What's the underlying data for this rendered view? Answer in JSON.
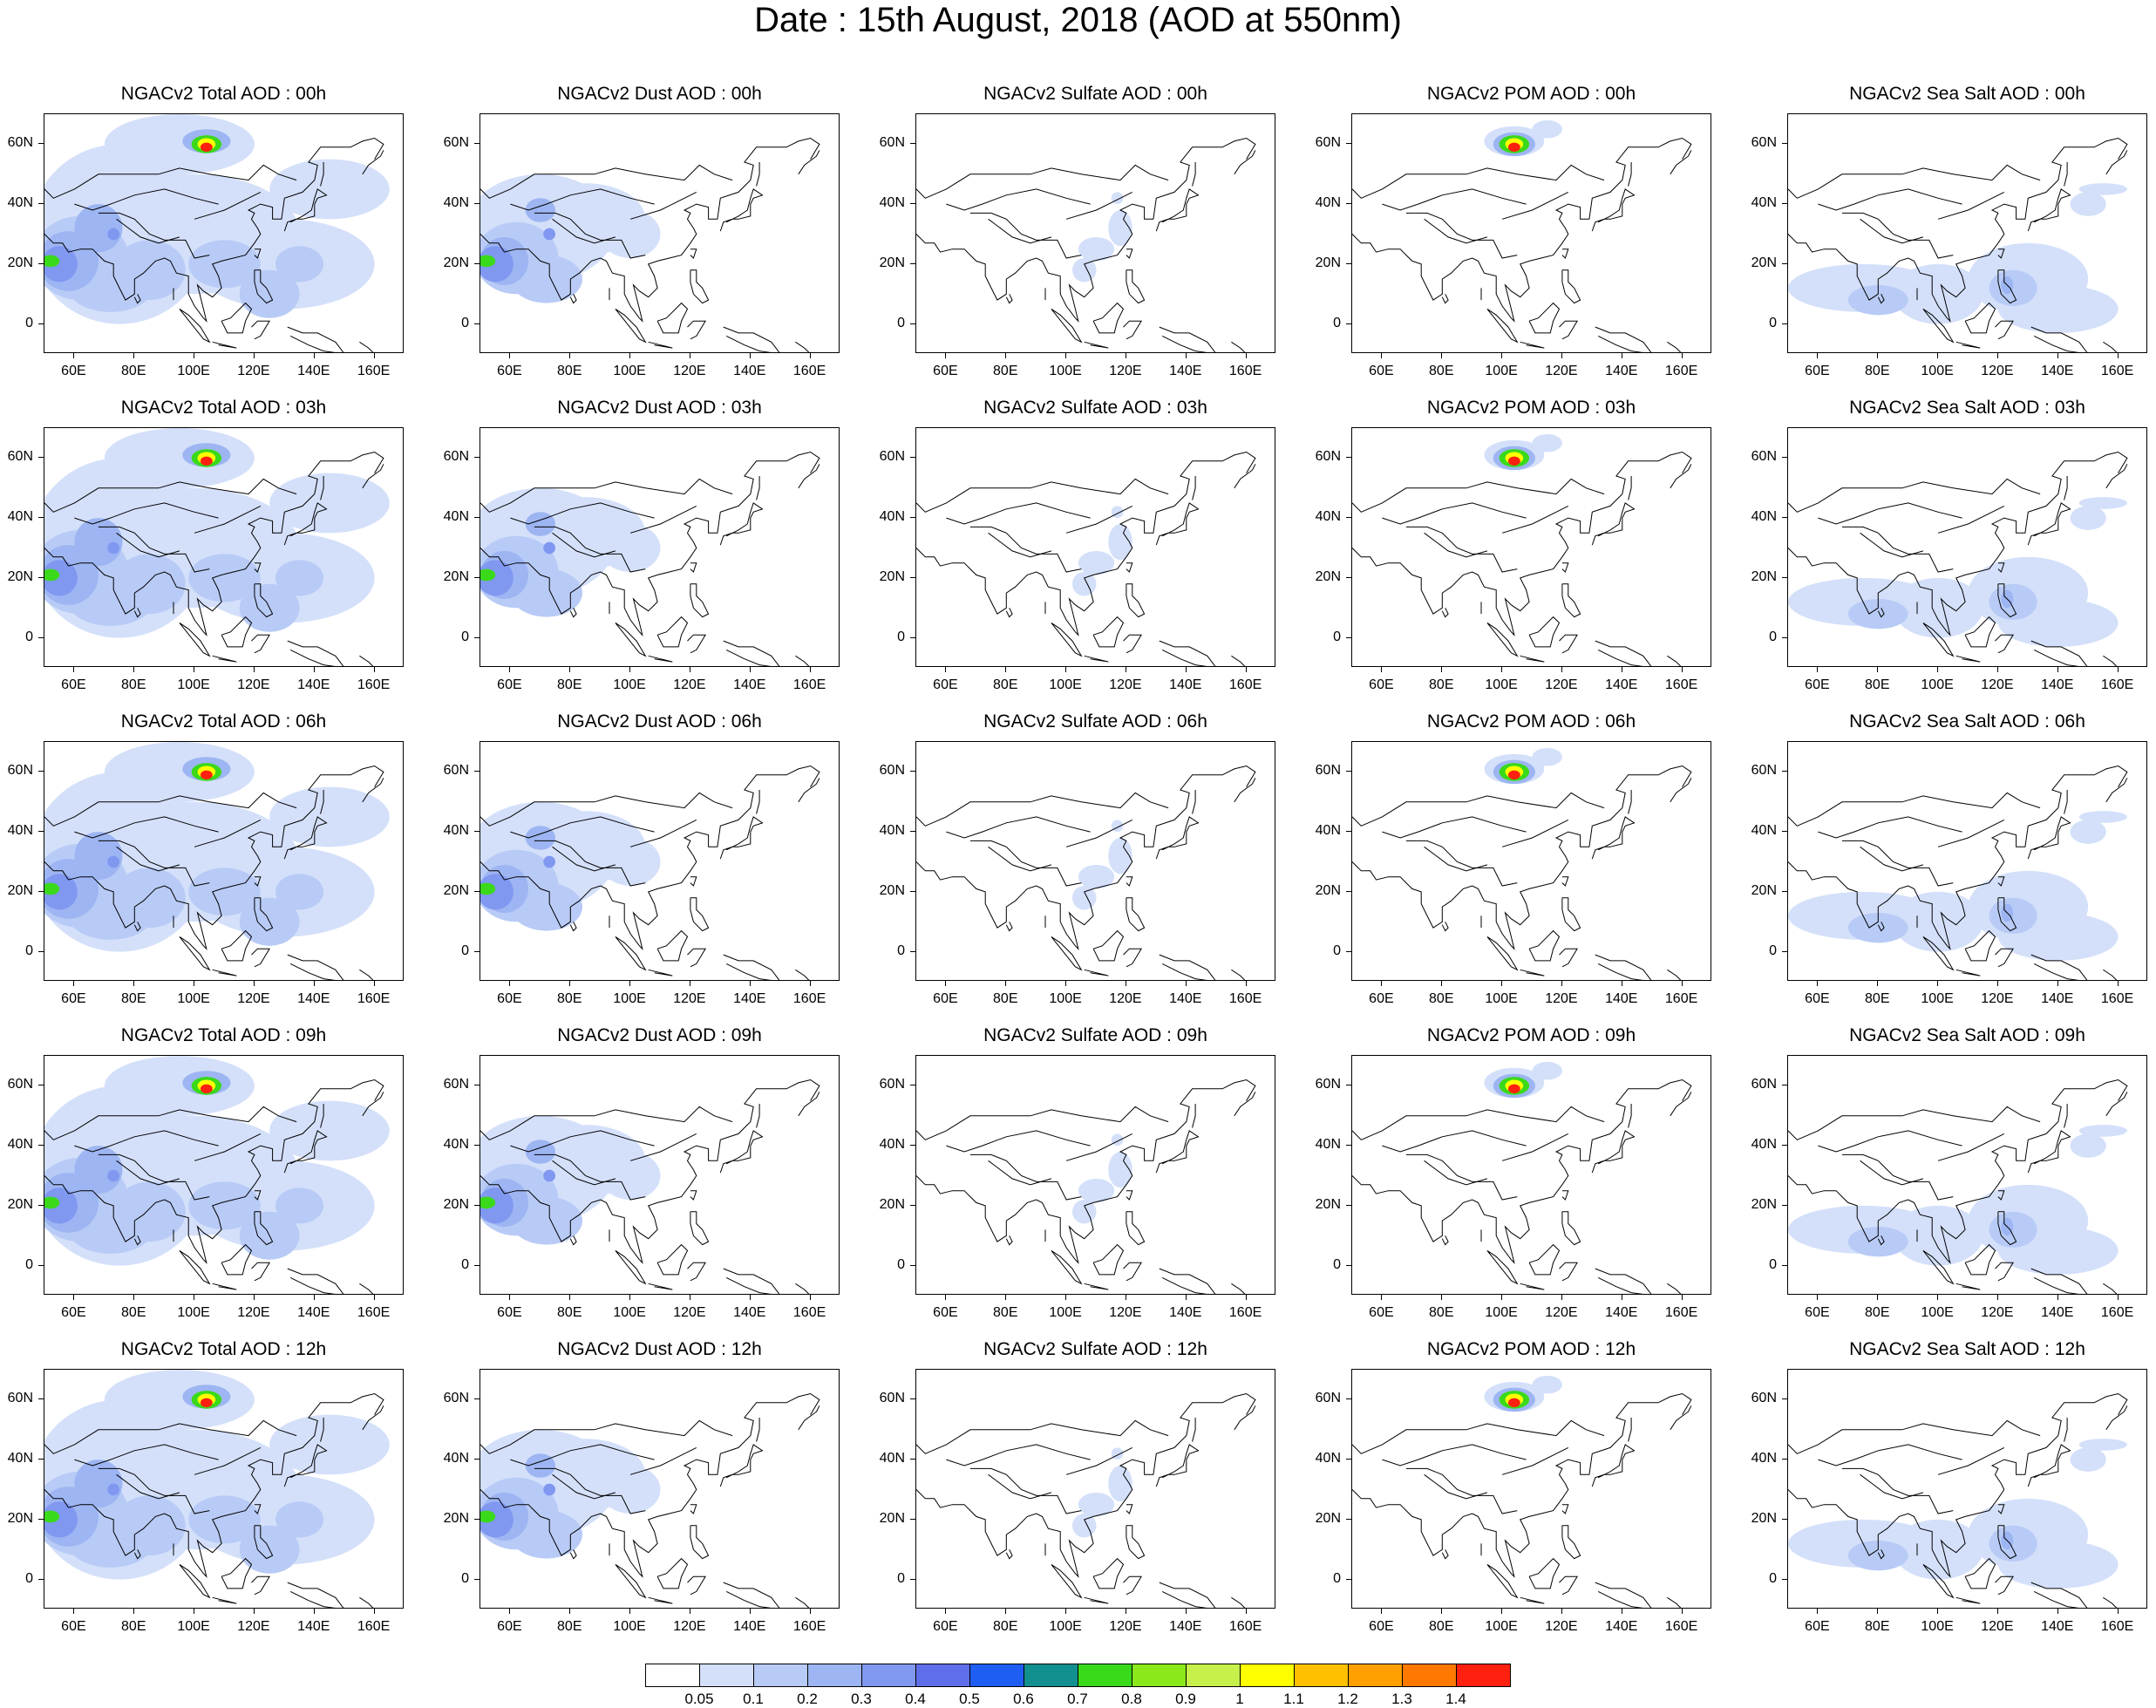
{
  "title": "Date : 15th August, 2018 (AOD at 550nm)",
  "lon_ticks": [
    "60E",
    "80E",
    "100E",
    "120E",
    "140E",
    "160E"
  ],
  "lat_ticks": [
    "60N",
    "40N",
    "20N",
    "0"
  ],
  "species": [
    "total",
    "dust",
    "sulfate",
    "pom",
    "seasalt"
  ],
  "panel_titles": [
    [
      "NGACv2 Total AOD : 00h",
      "NGACv2 Dust AOD : 00h",
      "NGACv2 Sulfate AOD : 00h",
      "NGACv2 POM AOD : 00h",
      "NGACv2 Sea Salt AOD : 00h"
    ],
    [
      "NGACv2 Total AOD : 03h",
      "NGACv2 Dust AOD : 03h",
      "NGACv2 Sulfate AOD : 03h",
      "NGACv2 POM AOD : 03h",
      "NGACv2 Sea Salt AOD : 03h"
    ],
    [
      "NGACv2 Total AOD : 06h",
      "NGACv2 Dust AOD : 06h",
      "NGACv2 Sulfate AOD : 06h",
      "NGACv2 POM AOD : 06h",
      "NGACv2 Sea Salt AOD : 06h"
    ],
    [
      "NGACv2 Total AOD : 09h",
      "NGACv2 Dust AOD : 09h",
      "NGACv2 Sulfate AOD : 09h",
      "NGACv2 POM AOD : 09h",
      "NGACv2 Sea Salt  AOD : 09h"
    ],
    [
      "NGACv2 Total AOD  : 12h",
      "NGACv2 Dust AOD : 12h",
      "NGACv2 Sulfate AOD : 12h",
      "NGACv2 POM  AOD : 12h",
      "NGACv2 Sea Salt  AOD : 12h"
    ]
  ],
  "colorbar": {
    "labels": [
      "0.05",
      "0.1",
      "0.2",
      "0.3",
      "0.4",
      "0.5",
      "0.6",
      "0.7",
      "0.8",
      "0.9",
      "1",
      "1.1",
      "1.2",
      "1.3",
      "1.4"
    ],
    "colors": [
      "#ffffff",
      "#d4e0fa",
      "#b8cbf6",
      "#9db5f2",
      "#8098f0",
      "#5f6ee9",
      "#1f5ef2",
      "#12908f",
      "#3ad91a",
      "#8be81a",
      "#c8f04a",
      "#ffff00",
      "#ffc000",
      "#ffa000",
      "#ff7800",
      "#ff2010"
    ]
  },
  "land_color": "#cfdcf6",
  "coast_color": "#000000"
}
